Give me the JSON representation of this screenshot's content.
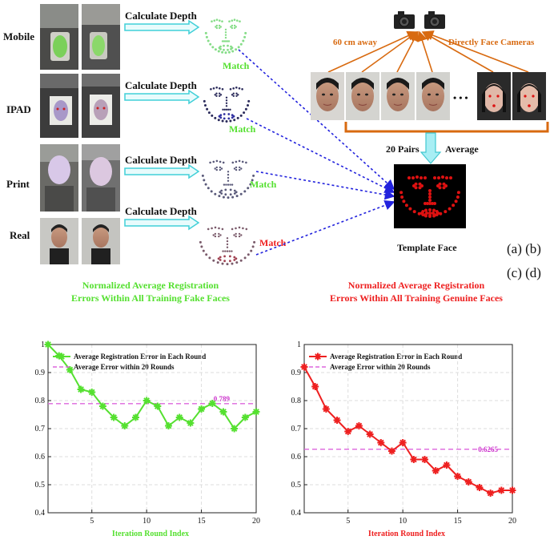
{
  "figure": {
    "row_labels": [
      "Mobile",
      "IPAD",
      "Print",
      "Real"
    ],
    "calculate_label": "Calculate Depth",
    "match_label": "Match",
    "camera_left_label": "60 cm away",
    "camera_right_label": "Directly Face Cameras",
    "pairs_label": "20 Pairs",
    "average_label": "Average",
    "template_label": "Template Face",
    "panel_ab": "(a)  (b)",
    "panel_cd": "(c)  (d)",
    "ellipsis": "• • •",
    "colors": {
      "match_green": "#55e030",
      "arrow_cyan": "#40d0d8",
      "arrow_blue": "#2222dd",
      "orange": "#d86a10",
      "template_dot": "#dd1111"
    }
  },
  "chart_data": [
    {
      "type": "line",
      "title_line1": "Normalized Average Registration",
      "title_line2": "Errors Within All Training Fake Faces",
      "xlabel": "Iteration Round Index",
      "ylabel": "",
      "x": [
        1,
        2,
        3,
        4,
        5,
        6,
        7,
        8,
        9,
        10,
        11,
        12,
        13,
        14,
        15,
        16,
        17,
        18,
        19,
        20
      ],
      "xlim": [
        1,
        20
      ],
      "ylim": [
        0.4,
        1
      ],
      "xticks": [
        5,
        10,
        15,
        20
      ],
      "yticks": [
        0.4,
        0.5,
        0.6,
        0.7,
        0.8,
        0.9,
        1
      ],
      "grid": true,
      "legend_position": "top-right",
      "color": "#55e030",
      "series": [
        {
          "name": "Average Registration Error in Each Round",
          "values": [
            1.0,
            0.96,
            0.91,
            0.84,
            0.83,
            0.78,
            0.74,
            0.71,
            0.74,
            0.8,
            0.78,
            0.71,
            0.74,
            0.72,
            0.77,
            0.79,
            0.76,
            0.7,
            0.74,
            0.76
          ]
        },
        {
          "name": "Average Error within 20 Rounds",
          "constant": 0.789
        }
      ],
      "annotation": "0.789"
    },
    {
      "type": "line",
      "title_line1": "Normalized Average Registration",
      "title_line2": "Errors Within All Training Genuine Faces",
      "xlabel": "Iteration Round Index",
      "ylabel": "",
      "x": [
        1,
        2,
        3,
        4,
        5,
        6,
        7,
        8,
        9,
        10,
        11,
        12,
        13,
        14,
        15,
        16,
        17,
        18,
        19,
        20
      ],
      "xlim": [
        1,
        20
      ],
      "ylim": [
        0.4,
        1
      ],
      "xticks": [
        5,
        10,
        15,
        20
      ],
      "yticks": [
        0.4,
        0.5,
        0.6,
        0.7,
        0.8,
        0.9,
        1
      ],
      "grid": true,
      "legend_position": "top-right",
      "color": "#ee2020",
      "series": [
        {
          "name": "Average Registration Error in Each Round",
          "values": [
            0.92,
            0.85,
            0.77,
            0.73,
            0.69,
            0.71,
            0.68,
            0.65,
            0.62,
            0.65,
            0.59,
            0.59,
            0.55,
            0.57,
            0.53,
            0.51,
            0.49,
            0.47,
            0.48,
            0.48
          ]
        },
        {
          "name": "Average Error within 20 Rounds",
          "constant": 0.6265
        }
      ],
      "annotation": "0.6265"
    }
  ]
}
